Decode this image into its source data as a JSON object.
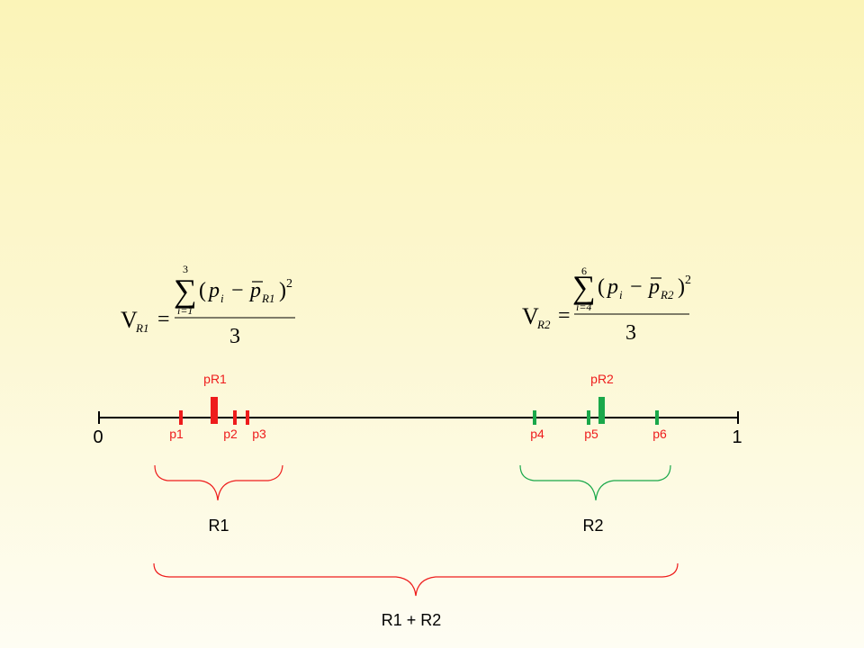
{
  "colors": {
    "region1": "#ee1c1c",
    "region2": "#1aa84a",
    "axis": "#000000",
    "brace_combined": "#ee1c1c"
  },
  "axis": {
    "start_label": "0",
    "end_label": "1"
  },
  "points": {
    "p1": "p1",
    "p2": "p2",
    "p3": "p3",
    "p4": "p4",
    "p5": "p5",
    "p6": "p6"
  },
  "means": {
    "pR1": "pR1",
    "pR2": "pR2"
  },
  "regions": {
    "r1": "R1",
    "r2": "R2",
    "combined": "R1 + R2"
  },
  "formula_r1": {
    "lhs_V": "V",
    "lhs_sub": "R1",
    "equals": "=",
    "sum_top": "3",
    "sum_sign": "∑",
    "sum_bottom": "i=1",
    "open": "(",
    "p": "p",
    "p_sub": "i",
    "minus": "−",
    "pbar": "p",
    "pbar_sub": "R1",
    "close": ")",
    "exp": "2",
    "denominator": "3"
  },
  "formula_r2": {
    "lhs_V": "V",
    "lhs_sub": "R2",
    "equals": "=",
    "sum_top": "6",
    "sum_sign": "∑",
    "sum_bottom": "i=4",
    "open": "(",
    "p": "p",
    "p_sub": "i",
    "minus": "−",
    "pbar": "p",
    "pbar_sub": "R2",
    "close": ")",
    "exp": "2",
    "denominator": "3"
  }
}
